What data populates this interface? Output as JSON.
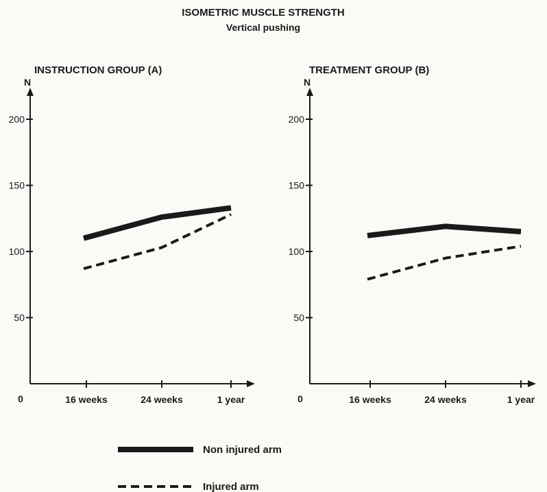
{
  "figure": {
    "title": "ISOMETRIC MUSCLE STRENGTH",
    "subtitle": "Vertical pushing"
  },
  "legend": {
    "items": [
      {
        "label": "Non injured arm",
        "style": "solid"
      },
      {
        "label": "Injured arm",
        "style": "dashed"
      }
    ]
  },
  "colors": {
    "ink": "#1a1a1a",
    "paper": "#fbfaf7"
  },
  "chart_data": [
    {
      "type": "line",
      "title": "INSTRUCTION GROUP (A)",
      "ylabel": "N",
      "xlabel": "",
      "origin_label": "0",
      "categories": [
        "16 weeks",
        "24 weeks",
        "1 year"
      ],
      "yticks": [
        50,
        100,
        150,
        200
      ],
      "ylim": [
        0,
        210
      ],
      "grid": false,
      "series": [
        {
          "name": "Non injured arm",
          "style": "solid",
          "values": [
            110,
            126,
            133
          ]
        },
        {
          "name": "Injured arm",
          "style": "dashed",
          "values": [
            87,
            103,
            128
          ]
        }
      ]
    },
    {
      "type": "line",
      "title": "TREATMENT GROUP (B)",
      "ylabel": "N",
      "xlabel": "",
      "origin_label": "0",
      "categories": [
        "16 weeks",
        "24 weeks",
        "1 year"
      ],
      "yticks": [
        50,
        100,
        150,
        200
      ],
      "ylim": [
        0,
        210
      ],
      "grid": false,
      "series": [
        {
          "name": "Non injured arm",
          "style": "solid",
          "values": [
            112,
            119,
            115
          ]
        },
        {
          "name": "Injured arm",
          "style": "dashed",
          "values": [
            79,
            95,
            104
          ]
        }
      ]
    }
  ]
}
